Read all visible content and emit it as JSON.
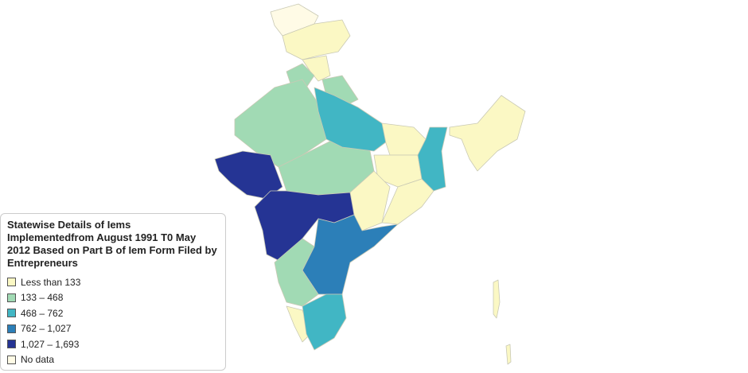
{
  "legend": {
    "title": "Statewise Details of Iems Implementedfrom August 1991 T0 May 2012 Based on Part B of Iem Form Filed by Entrepreneurs",
    "items": [
      {
        "label": "Less than 133",
        "color": "#fbf8c4"
      },
      {
        "label": "133 – 468",
        "color": "#a1dab4"
      },
      {
        "label": "468 – 762",
        "color": "#41b6c4"
      },
      {
        "label": "762 – 1,027",
        "color": "#2c7fb8"
      },
      {
        "label": "1,027 – 1,693",
        "color": "#253494"
      },
      {
        "label": "No data",
        "color": "#fffbe6"
      }
    ]
  }
}
